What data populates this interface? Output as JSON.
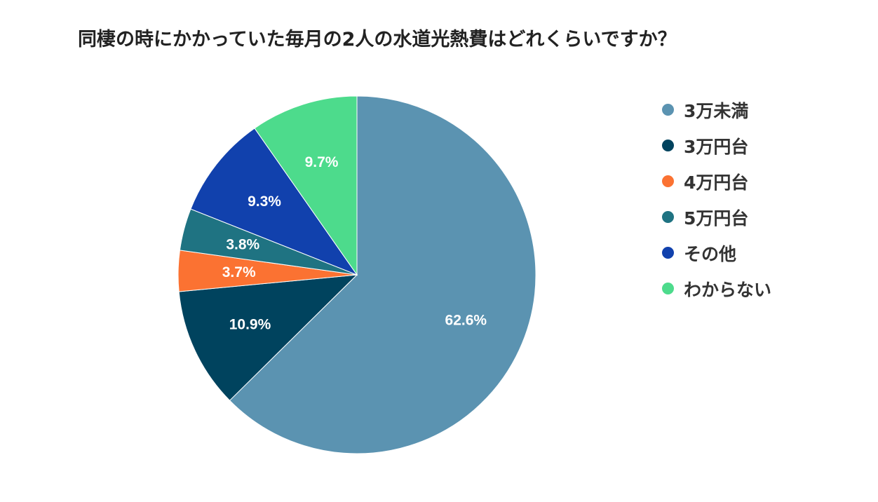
{
  "chart_data": {
    "type": "pie",
    "title": "同棲の時にかかっていた毎月の2人の水道光熱費はどれくらいですか？",
    "legend_position": "right",
    "slices": [
      {
        "label": "3万未満",
        "value": 62.6,
        "value_label": "62.6%",
        "color": "#5b93b1"
      },
      {
        "label": "3万円台",
        "value": 10.9,
        "value_label": "10.9%",
        "color": "#00435e"
      },
      {
        "label": "4万円台",
        "value": 3.7,
        "value_label": "3.7%",
        "color": "#fb7232"
      },
      {
        "label": "5万円台",
        "value": 3.8,
        "value_label": "3.8%",
        "color": "#1f7382"
      },
      {
        "label": "その他",
        "value": 9.3,
        "value_label": "9.3%",
        "color": "#1141ad"
      },
      {
        "label": "わからない",
        "value": 9.7,
        "value_label": "9.7%",
        "color": "#4ddb8c"
      }
    ]
  }
}
